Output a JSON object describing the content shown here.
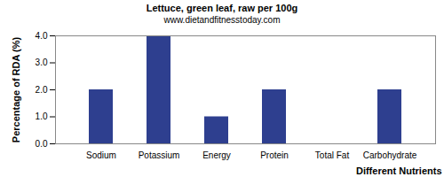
{
  "chart_data": {
    "type": "bar",
    "title": "Lettuce, green leaf, raw per 100g",
    "subtitle": "www.dietandfitnesstoday.com",
    "x_label": "Different Nutrients",
    "y_label": "Percentage of RDA (%)",
    "categories": [
      "Sodium",
      "Potassium",
      "Energy",
      "Protein",
      "Total Fat",
      "Carbohydrate"
    ],
    "values": [
      2,
      4,
      1,
      2,
      0,
      2
    ],
    "color": "#2e3f8f",
    "ylim": [
      0,
      4
    ],
    "yticks": [
      {
        "value": 0,
        "label": "0.0"
      },
      {
        "value": 1,
        "label": "1.0"
      },
      {
        "value": 2,
        "label": "2.0"
      },
      {
        "value": 3,
        "label": "3.0"
      },
      {
        "value": 4,
        "label": "4.0"
      }
    ],
    "grid": false
  }
}
